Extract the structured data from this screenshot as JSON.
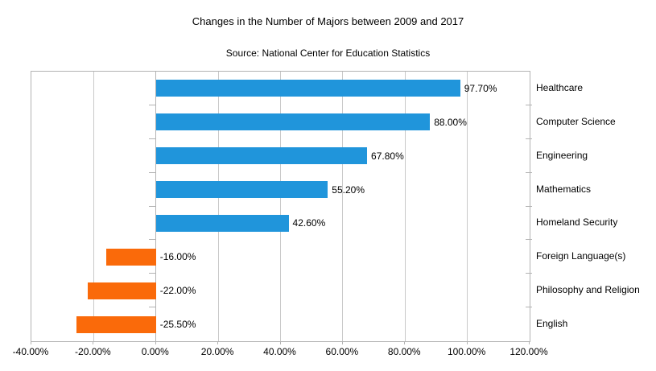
{
  "header": {
    "title": "Changes in the Number of Majors between 2009 and 2017",
    "subtitle": "Source: National Center for Education Statistics"
  },
  "colors": {
    "positive_bar": "#2095db",
    "negative_bar": "#fa6a0a",
    "gridline": "#c9c9c9",
    "axis_border": "#b3b3b3",
    "text": "#000000"
  },
  "chart_data": {
    "type": "bar",
    "orientation": "horizontal",
    "title": "Changes in the Number of Majors between 2009 and 2017",
    "subtitle": "Source: National Center for Education Statistics",
    "categories": [
      "Healthcare",
      "Computer Science",
      "Engineering",
      "Mathematics",
      "Homeland Security",
      "Foreign Language(s)",
      "Philosophy and Religion",
      "English"
    ],
    "values": [
      97.7,
      88.0,
      67.8,
      55.2,
      42.6,
      -16.0,
      -22.0,
      -25.5
    ],
    "data_labels": [
      "97.70%",
      "88.00%",
      "67.80%",
      "55.20%",
      "42.60%",
      "-16.00%",
      "-22.00%",
      "-25.50%"
    ],
    "xlabel": "",
    "ylabel": "",
    "xlim": [
      -40,
      120
    ],
    "x_tick_values": [
      -40,
      -20,
      0,
      20,
      40,
      60,
      80,
      100,
      120
    ],
    "x_tick_labels": [
      "-40.00%",
      "-20.00%",
      "0.00%",
      "20.00%",
      "40.00%",
      "60.00%",
      "80.00%",
      "100.00%",
      "120.00%"
    ],
    "grid": "vertical-gridlines-on",
    "legend": "none",
    "category_labels_position": "right",
    "data_label_position_positive": "outside-end",
    "data_label_position_negative": "right-of-zero-axis"
  }
}
